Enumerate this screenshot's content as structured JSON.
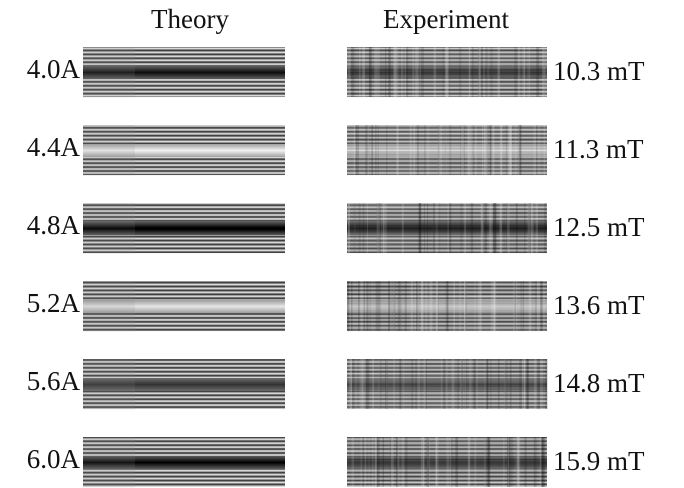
{
  "headers": {
    "theory": "Theory",
    "experiment": "Experiment"
  },
  "rows": [
    {
      "theory_label": "4.0A",
      "experiment_label": "10.3 mT"
    },
    {
      "theory_label": "4.4A",
      "experiment_label": "11.3 mT"
    },
    {
      "theory_label": "4.8A",
      "experiment_label": "12.5 mT"
    },
    {
      "theory_label": "5.2A",
      "experiment_label": "13.6 mT"
    },
    {
      "theory_label": "5.6A",
      "experiment_label": "14.8 mT"
    },
    {
      "theory_label": "6.0A",
      "experiment_label": "15.9 mT"
    }
  ]
}
